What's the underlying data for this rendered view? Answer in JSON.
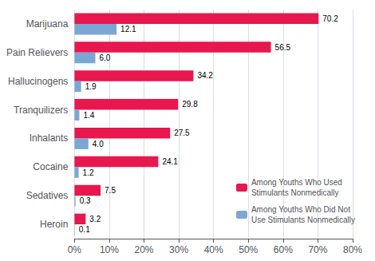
{
  "chart_data": {
    "type": "bar",
    "orientation": "horizontal",
    "categories": [
      "Marijuana",
      "Pain Relievers",
      "Hallucinogens",
      "Tranquilizers",
      "Inhalants",
      "Cocaine",
      "Sedatives",
      "Heroin"
    ],
    "series": [
      {
        "name": "Among Youths Who Used\nStimulants Nonmedically",
        "color": "#E8174E",
        "values": [
          70.2,
          56.5,
          34.2,
          29.8,
          27.5,
          24.1,
          7.5,
          3.2
        ]
      },
      {
        "name": "Among Youths Who Did Not\nUse Stimulants Nonmedically",
        "color": "#7BA7D4",
        "values": [
          12.1,
          6.0,
          1.9,
          1.4,
          4.0,
          1.2,
          0.3,
          0.1
        ],
        "value_labels": [
          "12.1",
          "6.0",
          "1.9",
          "1.4",
          "4.0",
          "1.2",
          "0.3",
          "0.1"
        ]
      }
    ],
    "xlim": [
      0,
      80
    ],
    "xticks": [
      {
        "value": 0,
        "label": "0%"
      },
      {
        "value": 10,
        "label": "10%"
      },
      {
        "value": 20,
        "label": "20%"
      },
      {
        "value": 30,
        "label": "30%"
      },
      {
        "value": 40,
        "label": "40%"
      },
      {
        "value": 50,
        "label": "50%"
      },
      {
        "value": 60,
        "label": "60%"
      },
      {
        "value": 70,
        "label": "70%"
      },
      {
        "value": 80,
        "label": "80%"
      }
    ],
    "grid": true,
    "data_labels": true,
    "legend": "lower right"
  }
}
